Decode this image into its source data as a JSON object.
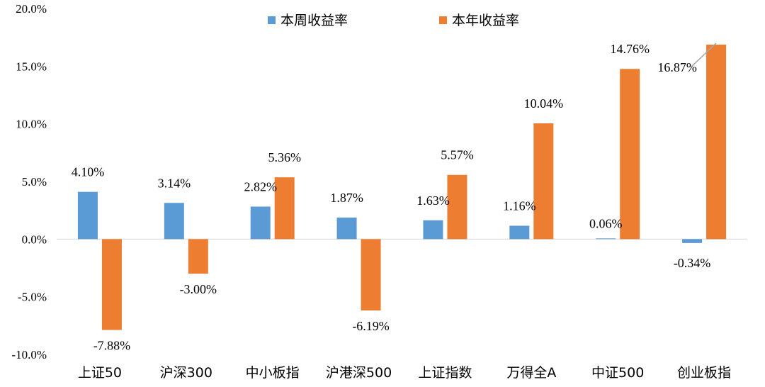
{
  "chart_data": {
    "type": "bar",
    "categories": [
      "上证50",
      "沪深300",
      "中小板指",
      "沪港深500",
      "上证指数",
      "万得全A",
      "中证500",
      "创业板指"
    ],
    "series": [
      {
        "name": "本周收益率",
        "color": "#5b9bd5",
        "values": [
          4.1,
          3.14,
          2.82,
          1.87,
          1.63,
          1.16,
          0.06,
          -0.34
        ],
        "labels": [
          "4.10%",
          "3.14%",
          "2.82%",
          "1.87%",
          "1.63%",
          "1.16%",
          "0.06%",
          "-0.34%"
        ]
      },
      {
        "name": "本年收益率",
        "color": "#ed7d31",
        "values": [
          -7.88,
          -3.0,
          5.36,
          -6.19,
          5.57,
          10.04,
          14.76,
          16.87
        ],
        "labels": [
          "-7.88%",
          "-3.00%",
          "5.36%",
          "-6.19%",
          "5.57%",
          "10.04%",
          "14.76%",
          "16.87%"
        ]
      }
    ],
    "ylim": [
      -10,
      20
    ],
    "yticks": [
      20,
      15,
      10,
      5,
      0,
      -5,
      -10
    ],
    "ytick_labels": [
      "20.0%",
      "15.0%",
      "10.0%",
      "5.0%",
      "0.0%",
      "-5.0%",
      "-10.0%"
    ],
    "grid": false,
    "legend_position": "top-center",
    "title": "",
    "xlabel": "",
    "ylabel": ""
  }
}
